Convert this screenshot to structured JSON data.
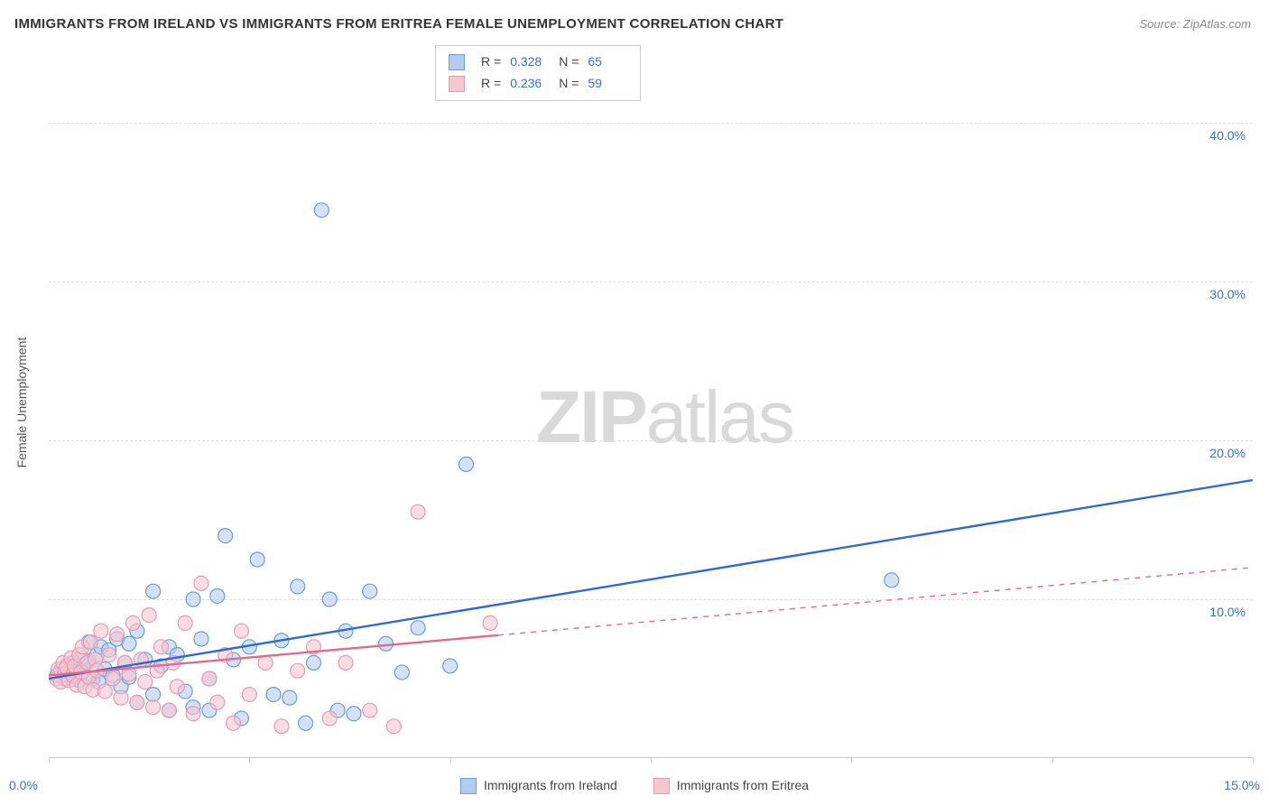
{
  "title": "IMMIGRANTS FROM IRELAND VS IMMIGRANTS FROM ERITREA FEMALE UNEMPLOYMENT CORRELATION CHART",
  "source_prefix": "Source: ",
  "source": "ZipAtlas.com",
  "y_axis_label": "Female Unemployment",
  "watermark_zip": "ZIP",
  "watermark_atlas": "atlas",
  "chart": {
    "type": "scatter",
    "background_color": "#ffffff",
    "grid_color": "#dcdcdc",
    "axis_color": "#c8c8c8",
    "xlim": [
      0,
      15
    ],
    "ylim": [
      0,
      45
    ],
    "x_ticks_pct": [
      0,
      2.5,
      5.0,
      7.5,
      10.0,
      12.5,
      15.0
    ],
    "x_tick_labels": {
      "left": "0.0%",
      "right": "15.0%"
    },
    "y_grid_values": [
      10,
      20,
      30,
      40
    ],
    "y_tick_labels": [
      "10.0%",
      "20.0%",
      "30.0%",
      "40.0%"
    ],
    "label_color": "#3b6fd6",
    "marker_radius": 8,
    "marker_stroke_width": 1.2,
    "trend_line_width": 2.4,
    "series": [
      {
        "name": "Immigrants from Ireland",
        "fill": "#b4cdec",
        "stroke": "#6a9de0",
        "trend_color": "#2e6ad1",
        "trend_dash": "none",
        "r_value": "0.328",
        "n_value": "65",
        "trend": {
          "x1": 0,
          "y1": 5.0,
          "x2": 15,
          "y2": 17.5
        },
        "trend_solid_until_x": 15,
        "points": [
          [
            0.1,
            5.2
          ],
          [
            0.15,
            5.5
          ],
          [
            0.2,
            5.0
          ],
          [
            0.22,
            5.8
          ],
          [
            0.25,
            5.3
          ],
          [
            0.3,
            6.0
          ],
          [
            0.32,
            5.1
          ],
          [
            0.35,
            5.7
          ],
          [
            0.38,
            4.9
          ],
          [
            0.4,
            6.2
          ],
          [
            0.42,
            5.4
          ],
          [
            0.45,
            5.9
          ],
          [
            0.5,
            6.1
          ],
          [
            0.5,
            7.3
          ],
          [
            0.55,
            5.0
          ],
          [
            0.6,
            6.5
          ],
          [
            0.62,
            4.8
          ],
          [
            0.65,
            7.0
          ],
          [
            0.7,
            5.6
          ],
          [
            0.75,
            6.8
          ],
          [
            0.8,
            5.2
          ],
          [
            0.85,
            7.5
          ],
          [
            0.9,
            4.5
          ],
          [
            0.95,
            6.0
          ],
          [
            1.0,
            7.2
          ],
          [
            1.0,
            5.1
          ],
          [
            1.1,
            8.0
          ],
          [
            1.1,
            3.5
          ],
          [
            1.2,
            6.2
          ],
          [
            1.3,
            10.5
          ],
          [
            1.3,
            4.0
          ],
          [
            1.4,
            5.8
          ],
          [
            1.5,
            7.0
          ],
          [
            1.5,
            3.0
          ],
          [
            1.6,
            6.5
          ],
          [
            1.7,
            4.2
          ],
          [
            1.8,
            10.0
          ],
          [
            1.8,
            3.2
          ],
          [
            1.9,
            7.5
          ],
          [
            2.0,
            5.0
          ],
          [
            2.0,
            3.0
          ],
          [
            2.1,
            10.2
          ],
          [
            2.2,
            14.0
          ],
          [
            2.3,
            6.2
          ],
          [
            2.4,
            2.5
          ],
          [
            2.5,
            7.0
          ],
          [
            2.6,
            12.5
          ],
          [
            2.8,
            4.0
          ],
          [
            2.9,
            7.4
          ],
          [
            3.0,
            3.8
          ],
          [
            3.1,
            10.8
          ],
          [
            3.2,
            2.2
          ],
          [
            3.3,
            6.0
          ],
          [
            3.4,
            34.5
          ],
          [
            3.5,
            10.0
          ],
          [
            3.6,
            3.0
          ],
          [
            3.7,
            8.0
          ],
          [
            3.8,
            2.8
          ],
          [
            4.0,
            10.5
          ],
          [
            4.2,
            7.2
          ],
          [
            4.4,
            5.4
          ],
          [
            4.6,
            8.2
          ],
          [
            5.0,
            5.8
          ],
          [
            5.2,
            18.5
          ],
          [
            10.5,
            11.2
          ]
        ]
      },
      {
        "name": "Immigrants from Eritrea",
        "fill": "#f5c6d0",
        "stroke": "#ea9ab2",
        "trend_color": "#e36a8a",
        "trend_dash": "6 6",
        "r_value": "0.236",
        "n_value": "59",
        "trend": {
          "x1": 0,
          "y1": 5.2,
          "x2": 15,
          "y2": 12.0
        },
        "trend_solid_until_x": 5.6,
        "points": [
          [
            0.1,
            5.0
          ],
          [
            0.12,
            5.6
          ],
          [
            0.15,
            4.8
          ],
          [
            0.18,
            6.0
          ],
          [
            0.2,
            5.3
          ],
          [
            0.22,
            5.7
          ],
          [
            0.25,
            4.9
          ],
          [
            0.28,
            6.3
          ],
          [
            0.3,
            5.2
          ],
          [
            0.32,
            5.8
          ],
          [
            0.35,
            4.6
          ],
          [
            0.38,
            6.5
          ],
          [
            0.4,
            5.4
          ],
          [
            0.42,
            7.0
          ],
          [
            0.45,
            4.5
          ],
          [
            0.48,
            6.0
          ],
          [
            0.5,
            5.1
          ],
          [
            0.52,
            7.3
          ],
          [
            0.55,
            4.3
          ],
          [
            0.58,
            6.2
          ],
          [
            0.6,
            5.5
          ],
          [
            0.65,
            8.0
          ],
          [
            0.7,
            4.2
          ],
          [
            0.75,
            6.5
          ],
          [
            0.8,
            5.0
          ],
          [
            0.85,
            7.8
          ],
          [
            0.9,
            3.8
          ],
          [
            0.95,
            6.0
          ],
          [
            1.0,
            5.3
          ],
          [
            1.05,
            8.5
          ],
          [
            1.1,
            3.5
          ],
          [
            1.15,
            6.2
          ],
          [
            1.2,
            4.8
          ],
          [
            1.25,
            9.0
          ],
          [
            1.3,
            3.2
          ],
          [
            1.35,
            5.5
          ],
          [
            1.4,
            7.0
          ],
          [
            1.5,
            3.0
          ],
          [
            1.55,
            6.0
          ],
          [
            1.6,
            4.5
          ],
          [
            1.7,
            8.5
          ],
          [
            1.8,
            2.8
          ],
          [
            1.9,
            11.0
          ],
          [
            2.0,
            5.0
          ],
          [
            2.1,
            3.5
          ],
          [
            2.2,
            6.5
          ],
          [
            2.3,
            2.2
          ],
          [
            2.4,
            8.0
          ],
          [
            2.5,
            4.0
          ],
          [
            2.7,
            6.0
          ],
          [
            2.9,
            2.0
          ],
          [
            3.1,
            5.5
          ],
          [
            3.3,
            7.0
          ],
          [
            3.5,
            2.5
          ],
          [
            3.7,
            6.0
          ],
          [
            4.0,
            3.0
          ],
          [
            4.3,
            2.0
          ],
          [
            4.6,
            15.5
          ],
          [
            5.5,
            8.5
          ]
        ]
      }
    ]
  },
  "top_legend": {
    "stat_r_label": "R =",
    "stat_n_label": "N ="
  },
  "bottom_legend": {
    "items": [
      {
        "label": "Immigrants from Ireland",
        "fill": "#b4cdec",
        "stroke": "#6a9de0"
      },
      {
        "label": "Immigrants from Eritrea",
        "fill": "#f5c6d0",
        "stroke": "#ea9ab2"
      }
    ]
  }
}
